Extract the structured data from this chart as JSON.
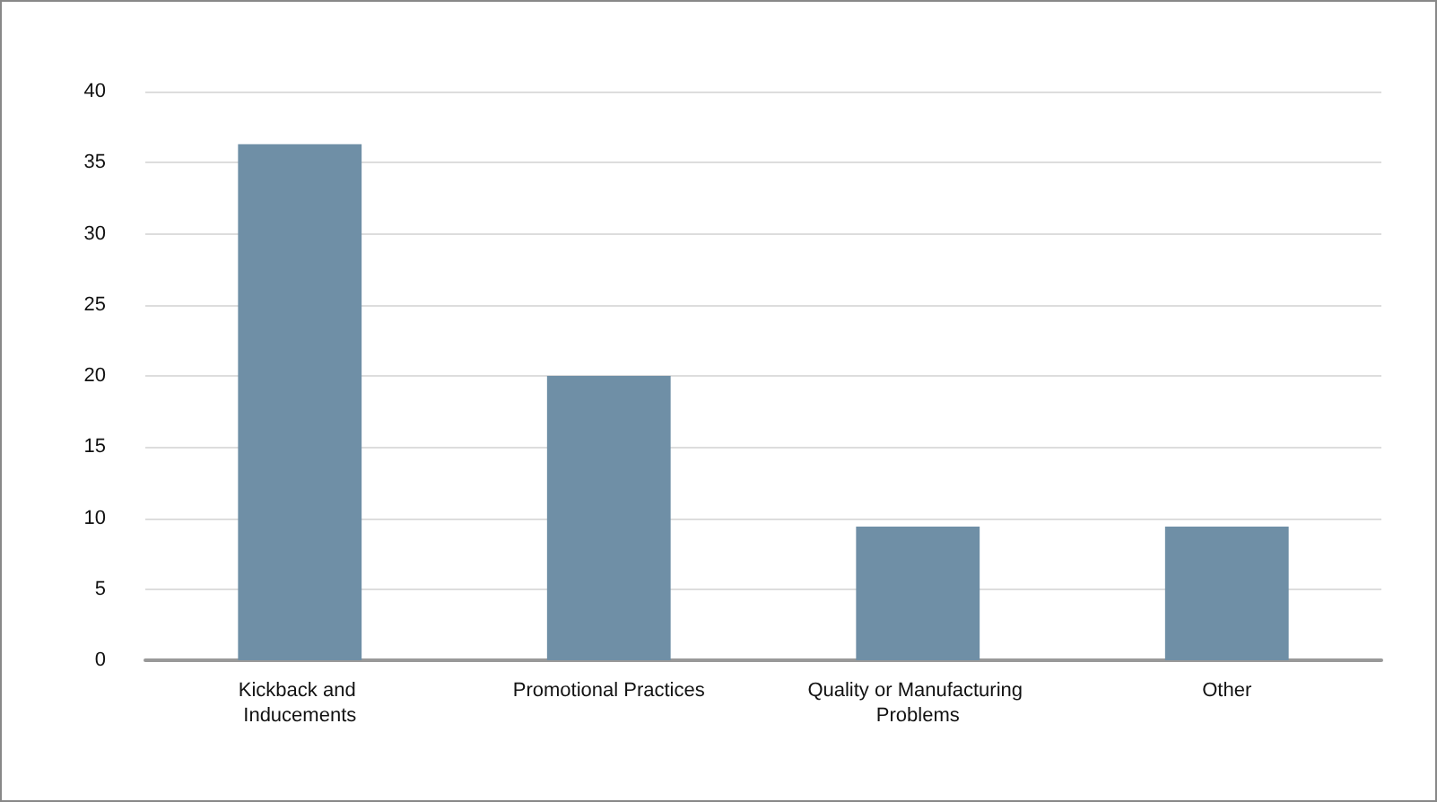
{
  "chart_data": {
    "type": "bar",
    "categories": [
      "Kickback and Inducements",
      "Promotional Practices",
      "Quality or Manufacturing Problems",
      "Other"
    ],
    "values": [
      36.3,
      20,
      9.4,
      9.4
    ],
    "color": "#6f8fa6",
    "ylim": [
      0,
      40
    ],
    "yticks": [
      0,
      5,
      10,
      15,
      20,
      25,
      30,
      35,
      40
    ],
    "grid": "y"
  }
}
